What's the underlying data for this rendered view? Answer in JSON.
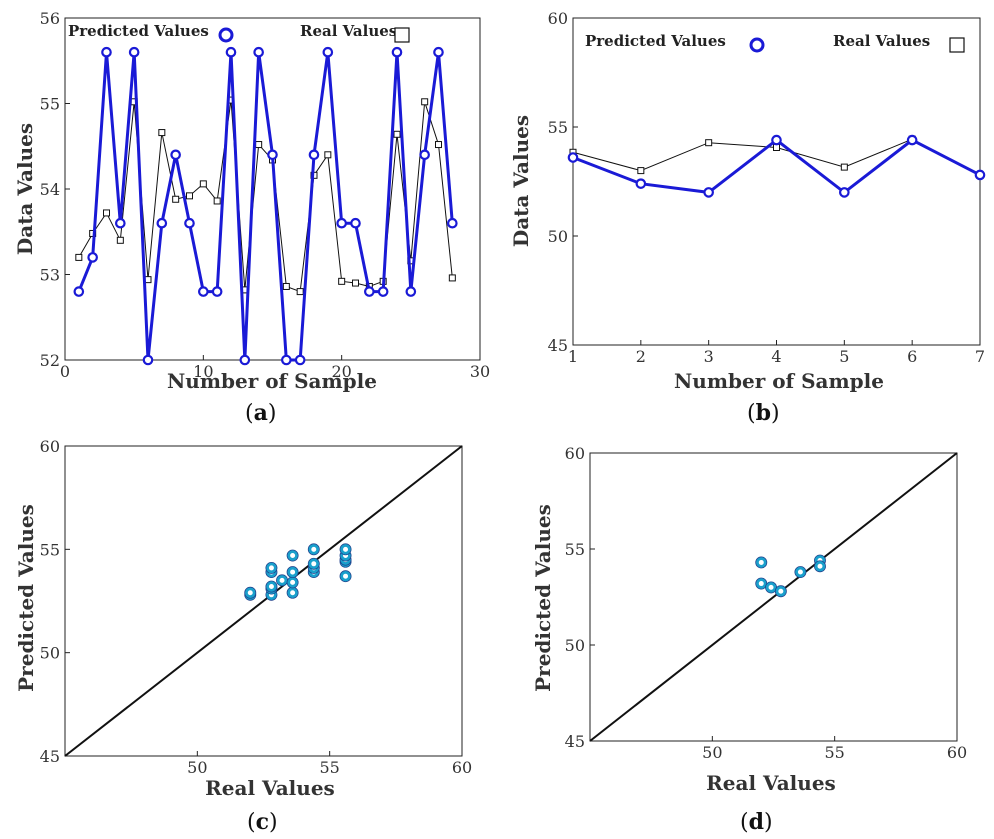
{
  "chart_data": [
    {
      "panel": "a",
      "type": "line",
      "caption": {
        "open": "(",
        "letter": "a",
        "close": ")"
      },
      "xlabel": "Number of Sample",
      "ylabel": "Data Values",
      "xlim": [
        0,
        30
      ],
      "ylim": [
        52,
        56
      ],
      "xticks": [
        0,
        10,
        20,
        30
      ],
      "yticks": [
        52,
        53,
        54,
        55,
        56
      ],
      "grid": false,
      "legend_placement": "top",
      "x": [
        1,
        2,
        3,
        4,
        5,
        6,
        7,
        8,
        9,
        10,
        11,
        12,
        13,
        14,
        15,
        16,
        17,
        18,
        19,
        20,
        21,
        22,
        23,
        24,
        25,
        26,
        27,
        28
      ],
      "series": [
        {
          "name": "Predicted Values",
          "marker": "circle",
          "color": "#1a1ad6",
          "values": [
            52.8,
            53.2,
            55.6,
            53.6,
            55.6,
            52.0,
            53.6,
            54.4,
            53.6,
            52.8,
            52.8,
            55.6,
            52.0,
            55.6,
            54.4,
            52.0,
            52.0,
            54.4,
            55.6,
            53.6,
            53.6,
            52.8,
            52.8,
            55.6,
            52.8,
            54.4,
            55.6,
            53.6
          ]
        },
        {
          "name": "Real Values",
          "marker": "square",
          "color": "#111111",
          "values": [
            53.2,
            53.48,
            53.72,
            53.4,
            55.02,
            52.94,
            54.66,
            53.88,
            53.92,
            54.06,
            53.86,
            55.04,
            52.82,
            54.52,
            54.34,
            52.86,
            52.8,
            54.16,
            54.4,
            52.92,
            52.9,
            52.86,
            52.92,
            54.64,
            53.16,
            55.02,
            54.52,
            52.96
          ]
        }
      ]
    },
    {
      "panel": "b",
      "type": "line",
      "caption": {
        "open": "(",
        "letter": "b",
        "close": ")"
      },
      "xlabel": "Number of Sample",
      "ylabel": "Data Values",
      "xlim": [
        1,
        7
      ],
      "ylim": [
        45,
        60
      ],
      "xticks": [
        1,
        2,
        3,
        4,
        5,
        6,
        7
      ],
      "yticks": [
        45,
        50,
        55,
        60
      ],
      "grid": false,
      "legend_placement": "top",
      "x": [
        1,
        2,
        3,
        4,
        5,
        6,
        7
      ],
      "series": [
        {
          "name": "Predicted Values",
          "marker": "circle",
          "color": "#1a1ad6",
          "values": [
            53.6,
            52.4,
            52.0,
            54.4,
            52.0,
            54.4,
            52.8
          ]
        },
        {
          "name": "Real Values",
          "marker": "square",
          "color": "#111111",
          "values": [
            53.84,
            53.0,
            54.28,
            54.06,
            53.16,
            54.44,
            52.8
          ]
        }
      ]
    },
    {
      "panel": "c",
      "type": "scatter",
      "caption": {
        "open": "(",
        "letter": "c",
        "close": ")"
      },
      "xlabel": "Real Values",
      "ylabel": "Predicted Values",
      "xlim": [
        45,
        60
      ],
      "ylim": [
        45,
        60
      ],
      "xticks": [
        50,
        55,
        60
      ],
      "yticks": [
        45,
        50,
        55,
        60
      ],
      "grid": false,
      "reference_line": "y = x",
      "point_color": "#1aa0cc",
      "points": [
        [
          52.0,
          52.8
        ],
        [
          52.0,
          52.9
        ],
        [
          52.8,
          52.8
        ],
        [
          52.8,
          53.1
        ],
        [
          52.8,
          53.2
        ],
        [
          52.8,
          53.9
        ],
        [
          52.8,
          54.1
        ],
        [
          53.2,
          53.5
        ],
        [
          53.6,
          52.9
        ],
        [
          53.6,
          53.4
        ],
        [
          53.6,
          53.9
        ],
        [
          53.6,
          54.7
        ],
        [
          54.4,
          53.9
        ],
        [
          54.4,
          54.1
        ],
        [
          54.4,
          54.3
        ],
        [
          54.4,
          55.0
        ],
        [
          55.6,
          53.7
        ],
        [
          55.6,
          54.4
        ],
        [
          55.6,
          54.5
        ],
        [
          55.6,
          54.7
        ],
        [
          55.6,
          55.0
        ]
      ]
    },
    {
      "panel": "d",
      "type": "scatter",
      "caption": {
        "open": "(",
        "letter": "d",
        "close": ")"
      },
      "xlabel": "Real Values",
      "ylabel": "Predicted Values",
      "xlim": [
        45,
        60
      ],
      "ylim": [
        45,
        60
      ],
      "xticks": [
        50,
        55,
        60
      ],
      "yticks": [
        45,
        50,
        55,
        60
      ],
      "grid": false,
      "reference_line": "y = x",
      "point_color": "#1aa0cc",
      "points": [
        [
          52.0,
          54.3
        ],
        [
          52.0,
          53.2
        ],
        [
          52.4,
          53.0
        ],
        [
          52.8,
          52.8
        ],
        [
          53.6,
          53.8
        ],
        [
          54.4,
          54.4
        ],
        [
          54.4,
          54.1
        ]
      ]
    }
  ]
}
